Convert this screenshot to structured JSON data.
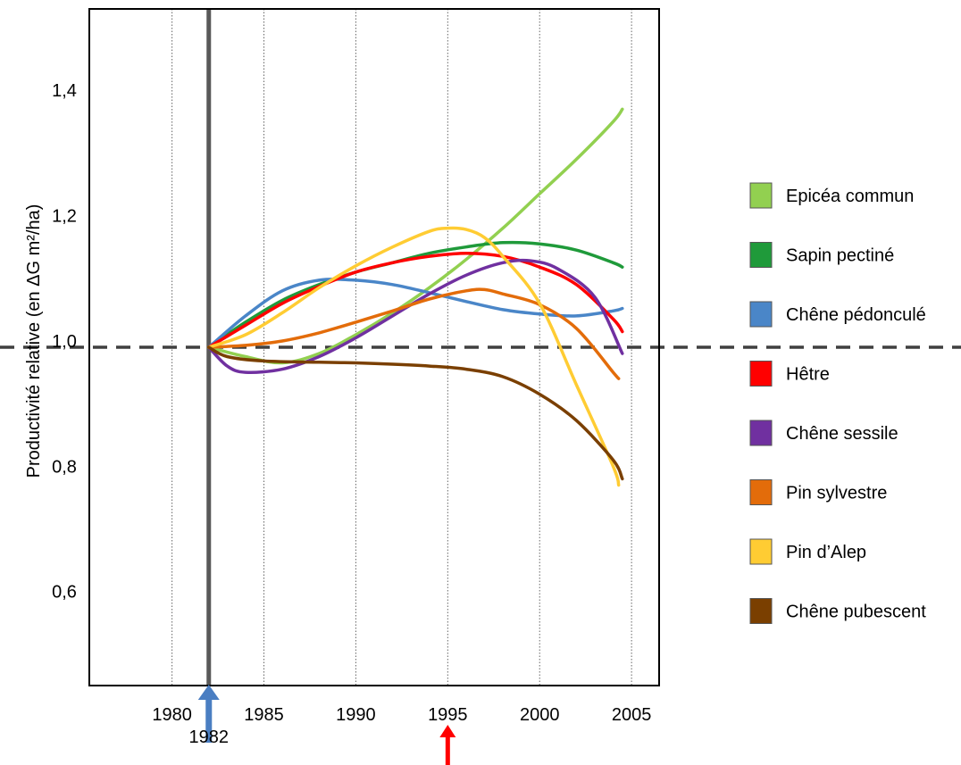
{
  "chart_data": {
    "type": "line",
    "title": "",
    "xlabel": "",
    "ylabel": "Productivité relative (en ΔG m²/ha)",
    "xlim": [
      1975.5,
      2006.5
    ],
    "ylim": [
      0.45,
      1.53
    ],
    "x_ticks": [
      "1980",
      "1985",
      "1990",
      "1995",
      "2000",
      "2005"
    ],
    "y_ticks": [
      "0,6",
      "0,8",
      "1,0",
      "1,2",
      "1,4"
    ],
    "grid": "vertical dotted lines at each x tick",
    "reference_line": {
      "y": 0.99,
      "style": "dashed"
    },
    "marker_line": {
      "x": 1982,
      "label": "1982"
    },
    "arrows": [
      {
        "x": 1982,
        "color": "#4a7ec2"
      },
      {
        "x": 1995,
        "color": "#ff0000"
      }
    ],
    "legend_position": "right",
    "series": [
      {
        "name": "Epicéa commun",
        "color": "#92d050",
        "points": [
          [
            1982,
            0.99
          ],
          [
            1984,
            0.975
          ],
          [
            1986,
            0.965
          ],
          [
            1988,
            0.98
          ],
          [
            1990,
            1.01
          ],
          [
            1992,
            1.045
          ],
          [
            1994,
            1.085
          ],
          [
            1996,
            1.13
          ],
          [
            1998,
            1.18
          ],
          [
            2000,
            1.235
          ],
          [
            2002,
            1.29
          ],
          [
            2004,
            1.35
          ],
          [
            2004.5,
            1.37
          ]
        ]
      },
      {
        "name": "Sapin pectiné",
        "color": "#1f9a3a",
        "points": [
          [
            1982,
            0.99
          ],
          [
            1984,
            1.03
          ],
          [
            1986,
            1.065
          ],
          [
            1988,
            1.09
          ],
          [
            1990,
            1.11
          ],
          [
            1992,
            1.125
          ],
          [
            1994,
            1.14
          ],
          [
            1996,
            1.15
          ],
          [
            1998,
            1.157
          ],
          [
            2000,
            1.155
          ],
          [
            2002,
            1.145
          ],
          [
            2004,
            1.125
          ],
          [
            2004.5,
            1.118
          ]
        ]
      },
      {
        "name": "Chêne pédonculé",
        "color": "#4a86c8",
        "points": [
          [
            1982,
            0.99
          ],
          [
            1984,
            1.04
          ],
          [
            1986,
            1.08
          ],
          [
            1988,
            1.097
          ],
          [
            1990,
            1.097
          ],
          [
            1992,
            1.09
          ],
          [
            1994,
            1.077
          ],
          [
            1996,
            1.063
          ],
          [
            1998,
            1.05
          ],
          [
            2000,
            1.043
          ],
          [
            2002,
            1.04
          ],
          [
            2004,
            1.048
          ],
          [
            2004.5,
            1.052
          ]
        ]
      },
      {
        "name": "Hêtre",
        "color": "#ff0000",
        "points": [
          [
            1982,
            0.99
          ],
          [
            1984,
            1.025
          ],
          [
            1986,
            1.06
          ],
          [
            1988,
            1.087
          ],
          [
            1990,
            1.11
          ],
          [
            1992,
            1.125
          ],
          [
            1994,
            1.135
          ],
          [
            1996,
            1.14
          ],
          [
            1998,
            1.135
          ],
          [
            2000,
            1.118
          ],
          [
            2002,
            1.09
          ],
          [
            2004,
            1.035
          ],
          [
            2004.5,
            1.015
          ]
        ]
      },
      {
        "name": "Chêne sessile",
        "color": "#7030a0",
        "points": [
          [
            1982,
            0.99
          ],
          [
            1983,
            0.96
          ],
          [
            1984,
            0.95
          ],
          [
            1986,
            0.955
          ],
          [
            1988,
            0.975
          ],
          [
            1990,
            1.005
          ],
          [
            1992,
            1.04
          ],
          [
            1994,
            1.075
          ],
          [
            1996,
            1.105
          ],
          [
            1998,
            1.125
          ],
          [
            1999.5,
            1.128
          ],
          [
            2001,
            1.115
          ],
          [
            2003,
            1.07
          ],
          [
            2004.5,
            0.98
          ]
        ]
      },
      {
        "name": "Pin sylvestre",
        "color": "#e36c0a",
        "points": [
          [
            1982,
            0.99
          ],
          [
            1984,
            0.993
          ],
          [
            1986,
            1.0
          ],
          [
            1988,
            1.013
          ],
          [
            1990,
            1.03
          ],
          [
            1992,
            1.048
          ],
          [
            1994,
            1.067
          ],
          [
            1996,
            1.08
          ],
          [
            1997,
            1.082
          ],
          [
            1998,
            1.075
          ],
          [
            2000,
            1.058
          ],
          [
            2002,
            1.02
          ],
          [
            2004,
            0.95
          ],
          [
            2004.3,
            0.94
          ]
        ]
      },
      {
        "name": "Pin d’Alep",
        "color": "#ffcc33",
        "points": [
          [
            1982,
            0.99
          ],
          [
            1984,
            1.01
          ],
          [
            1986,
            1.045
          ],
          [
            1988,
            1.085
          ],
          [
            1990,
            1.12
          ],
          [
            1992,
            1.15
          ],
          [
            1994,
            1.175
          ],
          [
            1995,
            1.18
          ],
          [
            1996,
            1.178
          ],
          [
            1997,
            1.165
          ],
          [
            1998,
            1.135
          ],
          [
            2000,
            1.06
          ],
          [
            2002,
            0.93
          ],
          [
            2004,
            0.8
          ],
          [
            2004.3,
            0.77
          ]
        ]
      },
      {
        "name": "Chêne pubescent",
        "color": "#7a3f00",
        "points": [
          [
            1982,
            0.99
          ],
          [
            1983,
            0.975
          ],
          [
            1985,
            0.968
          ],
          [
            1988,
            0.966
          ],
          [
            1990,
            0.965
          ],
          [
            1992,
            0.963
          ],
          [
            1994,
            0.96
          ],
          [
            1996,
            0.955
          ],
          [
            1998,
            0.943
          ],
          [
            2000,
            0.915
          ],
          [
            2002,
            0.873
          ],
          [
            2004,
            0.81
          ],
          [
            2004.5,
            0.78
          ]
        ]
      }
    ]
  }
}
